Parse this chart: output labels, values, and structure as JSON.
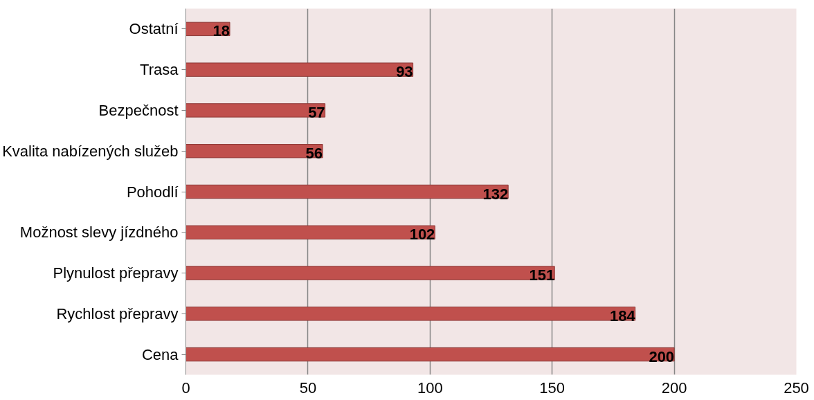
{
  "chart_data": {
    "type": "bar",
    "orientation": "horizontal",
    "categories": [
      "Ostatní",
      "Trasa",
      "Bezpečnost",
      "Kvalita nabízených služeb",
      "Pohodlí",
      "Možnost slevy jízdného",
      "Plynulost přepravy",
      "Rychlost přepravy",
      "Cena"
    ],
    "values": [
      18,
      93,
      57,
      56,
      132,
      102,
      151,
      184,
      200
    ],
    "color": "#c0504d",
    "xlim": [
      0,
      250
    ],
    "xticks": [
      0,
      50,
      100,
      150,
      200,
      250
    ],
    "grid": "x",
    "data_labels": true
  }
}
